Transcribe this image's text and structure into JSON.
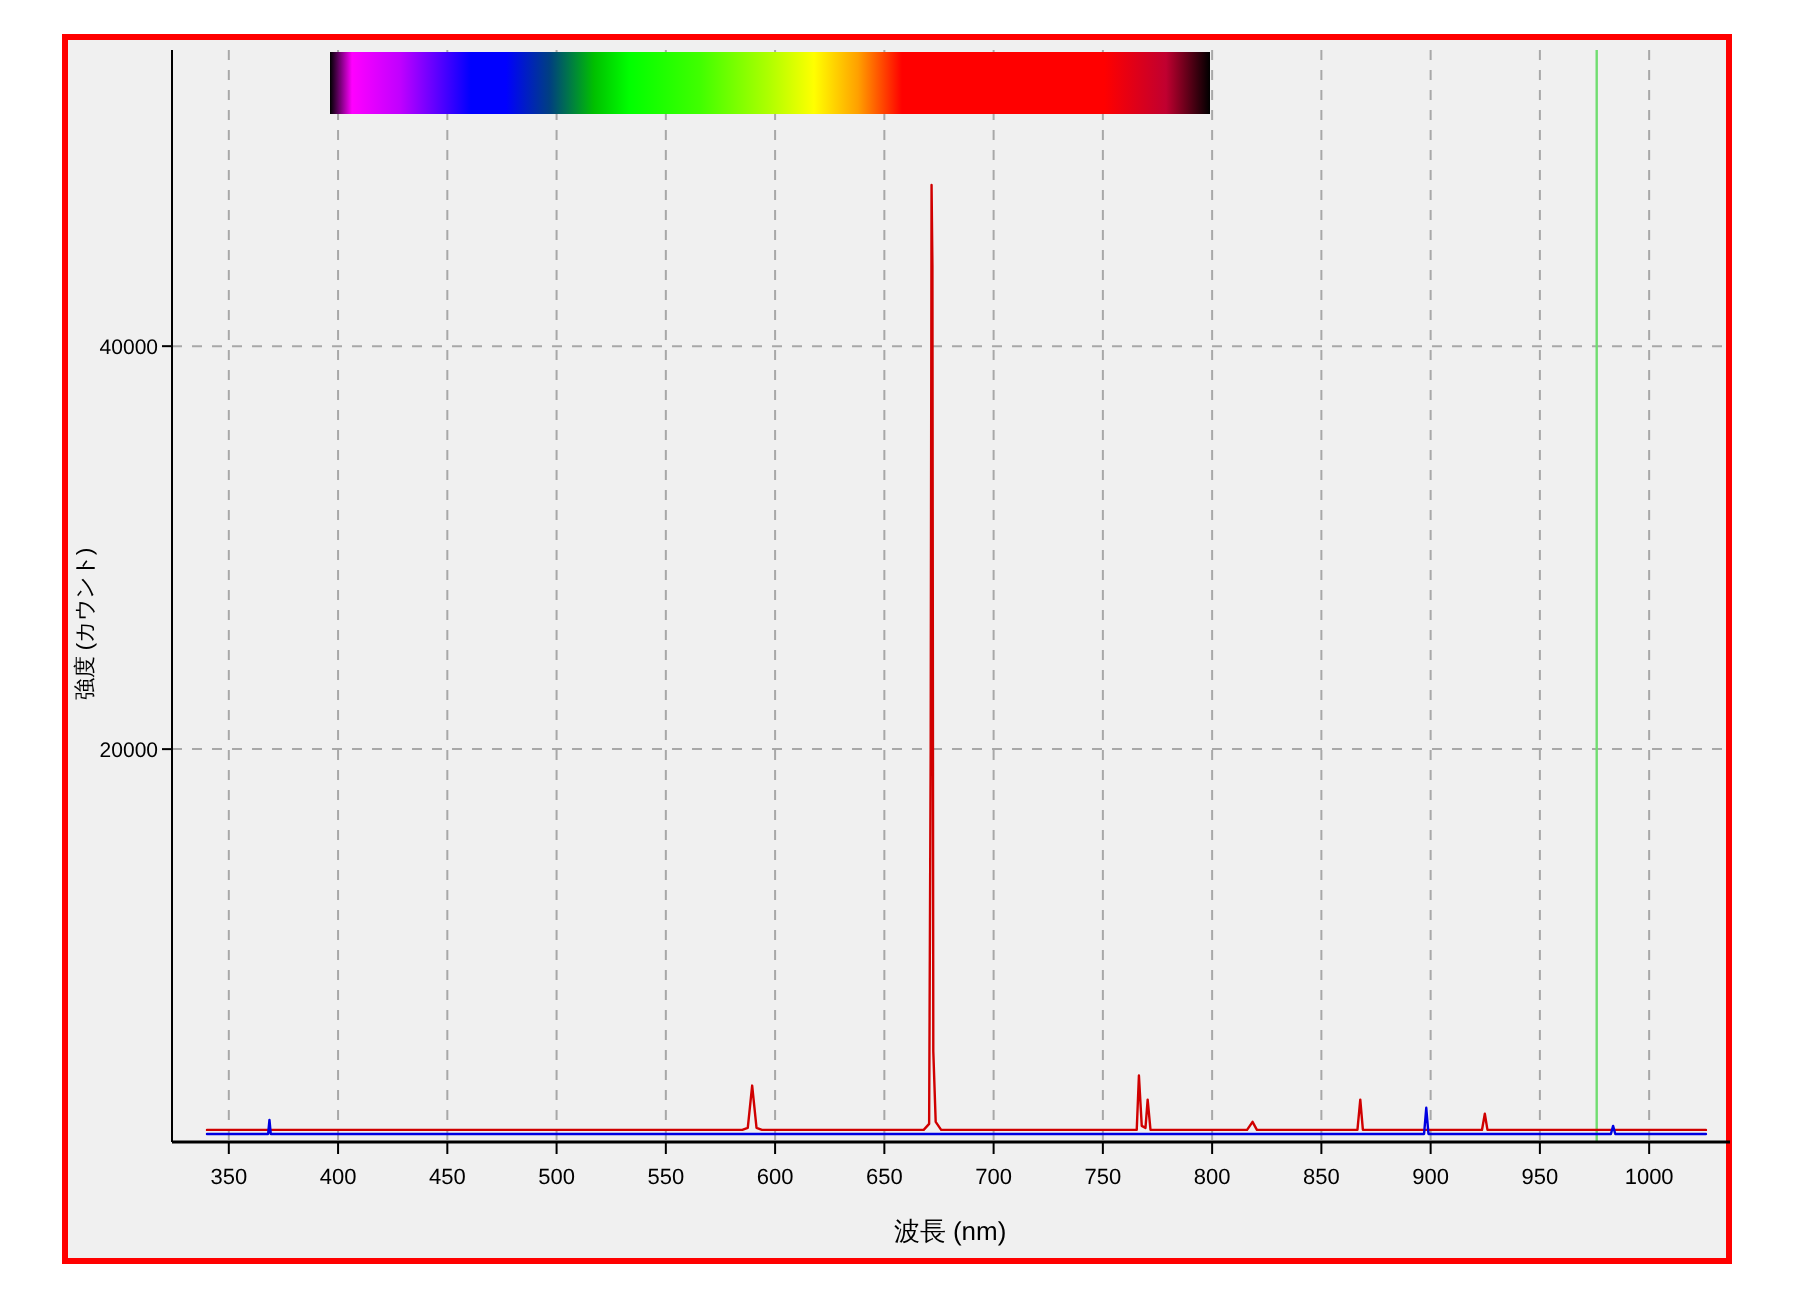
{
  "chart_data": {
    "type": "line",
    "xlabel": "波長 (nm)",
    "ylabel": "強度 (カウント)",
    "xlim": [
      324,
      1037
    ],
    "ylim": [
      500,
      54700
    ],
    "xticks": [
      350,
      400,
      450,
      500,
      550,
      600,
      650,
      700,
      750,
      800,
      850,
      900,
      950,
      1000
    ],
    "yticks": [
      20000,
      40000
    ],
    "grid": true,
    "ref_lines": [
      {
        "axis": "x",
        "value": 976,
        "color": "#70dd70"
      }
    ],
    "series": [
      {
        "color": "#d00000",
        "x": [
          340,
          400,
          450,
          500,
          550,
          585,
          587.5,
          589.5,
          591.5,
          594,
          640,
          668,
          670.5,
          671.2,
          671.6,
          672.0,
          672.4,
          673.5,
          676,
          720,
          764,
          765.5,
          766.5,
          767.8,
          769.5,
          770.5,
          771.8,
          790,
          816,
          818.5,
          820.5,
          850,
          866.5,
          867.8,
          869,
          900,
          923.5,
          924.8,
          926,
          980,
          1026
        ],
        "values": [
          1100,
          1100,
          1100,
          1100,
          1100,
          1100,
          1200,
          3300,
          1200,
          1100,
          1100,
          1100,
          1400,
          20000,
          48000,
          44000,
          5000,
          1500,
          1100,
          1100,
          1100,
          1100,
          3800,
          1300,
          1200,
          2600,
          1100,
          1100,
          1100,
          1500,
          1100,
          1100,
          1100,
          2600,
          1100,
          1100,
          1100,
          1900,
          1100,
          1100,
          1100
        ]
      },
      {
        "color": "#0000e0",
        "x": [
          340,
          368,
          368.6,
          369.2,
          450,
          550,
          650,
          750,
          850,
          897,
          898,
          899,
          960,
          982.5,
          983.5,
          984.5,
          1026
        ],
        "values": [
          900,
          900,
          1600,
          900,
          900,
          900,
          900,
          900,
          900,
          900,
          2200,
          900,
          900,
          900,
          1300,
          900,
          900
        ]
      }
    ]
  }
}
